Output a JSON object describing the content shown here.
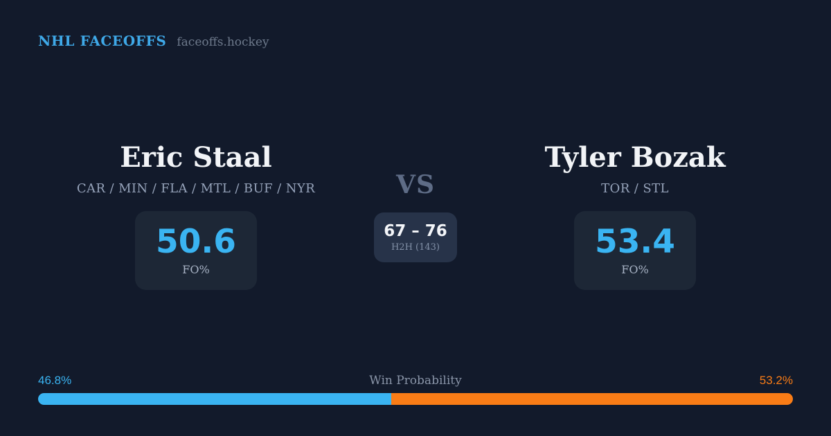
{
  "header": {
    "brand": "NHL FACEOFFS",
    "site": "faceoffs.hockey"
  },
  "matchup": {
    "vs_label": "VS",
    "players": {
      "left": {
        "name": "Eric Staal",
        "teams": "CAR / MIN / FLA / MTL / BUF / NYR",
        "fo_pct": "50.6",
        "fo_label": "FO%"
      },
      "right": {
        "name": "Tyler Bozak",
        "teams": "TOR / STL",
        "fo_pct": "53.4",
        "fo_label": "FO%"
      }
    },
    "h2h": {
      "score": "67 – 76",
      "label": "H2H (143)"
    }
  },
  "win_probability": {
    "title": "Win Probability",
    "left_label": "46.8%",
    "right_label": "53.2%",
    "left_pct": 46.8,
    "right_pct": 53.2
  },
  "colors": {
    "background": "#121a2b",
    "card": "#1d2736",
    "card_center": "#273349",
    "brand_blue": "#3fa9e8",
    "accent_blue": "#3ab4f2",
    "accent_orange": "#f97c16",
    "name_white": "#f2f4f7",
    "teams_gray": "#96a3ba",
    "vs_gray": "#5e6c86"
  }
}
